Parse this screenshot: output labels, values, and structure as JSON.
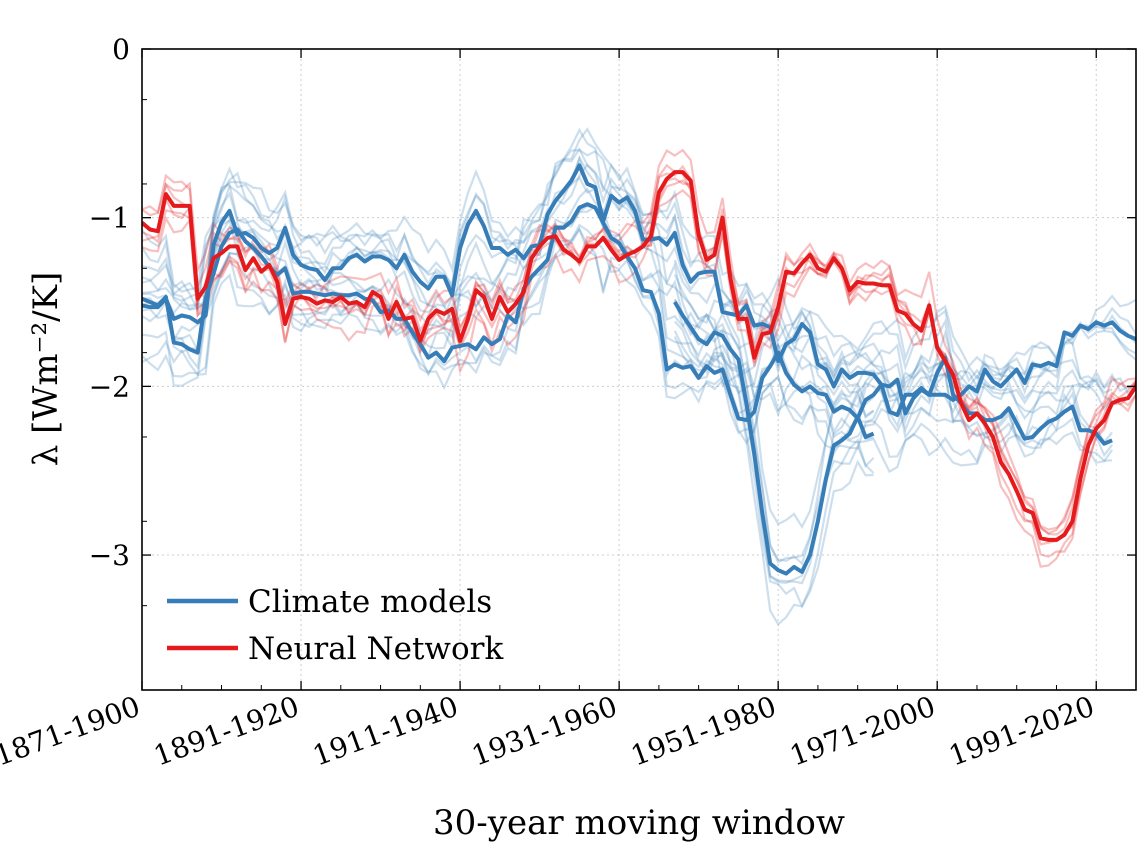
{
  "chart_data": {
    "type": "line",
    "xlabel": "30-year moving window",
    "ylabel": "λ [Wm⁻²/K]",
    "x_ticks": [
      "1871-1900",
      "1891-1920",
      "1911-1940",
      "1931-1960",
      "1951-1980",
      "1971-2000",
      "1991-2020"
    ],
    "x_tick_years": [
      1871,
      1891,
      1911,
      1931,
      1951,
      1971,
      1991
    ],
    "xlim": [
      1871,
      1996
    ],
    "y_ticks": [
      0,
      -1,
      -2,
      -3
    ],
    "ylim": [
      -3.8,
      0
    ],
    "grid": true,
    "legend_position": "bottom-left",
    "colors": {
      "climate": "#377eb8",
      "network": "#e41a1c"
    },
    "legend": [
      {
        "label": "Climate models",
        "color": "#377eb8"
      },
      {
        "label": "Neural Network",
        "color": "#e41a1c"
      }
    ],
    "series": [
      {
        "name": "Climate models",
        "color": "#377eb8",
        "x_start": 1871,
        "values": [
          -1.52,
          -1.53,
          -1.53,
          -1.48,
          -1.6,
          -1.58,
          -1.59,
          -1.62,
          -1.58,
          -1.16,
          -1.03,
          -0.96,
          -1.1,
          -1.09,
          -1.12,
          -1.18,
          -1.21,
          -1.18,
          -1.06,
          -1.22,
          -1.28,
          -1.3,
          -1.31,
          -1.37,
          -1.3,
          -1.3,
          -1.24,
          -1.22,
          -1.26,
          -1.23,
          -1.23,
          -1.25,
          -1.3,
          -1.22,
          -1.32,
          -1.38,
          -1.42,
          -1.35,
          -1.35,
          -1.46,
          -1.18,
          -1.04,
          -0.96,
          -1.05,
          -1.18,
          -1.18,
          -1.22,
          -1.19,
          -1.24,
          -1.17,
          -1.16,
          -0.98,
          -0.9,
          -0.84,
          -0.78,
          -0.69,
          -0.8,
          -0.82,
          -1.02,
          -0.87,
          -0.91,
          -0.88,
          -0.96,
          -1.13,
          -1.13,
          -1.12,
          -1.16,
          -1.09,
          -1.28,
          -1.38,
          -1.33,
          -1.32,
          -1.32,
          -1.56,
          -1.57,
          -1.58,
          -1.52,
          -1.64,
          -1.63,
          -1.65,
          -1.85,
          -1.75,
          -1.72,
          -1.63,
          -1.68,
          -1.87,
          -1.9,
          -2.0,
          -1.9,
          -1.95,
          -1.92,
          -1.92,
          -1.93,
          -1.99,
          -2.15,
          -2.17,
          -2.05,
          -2.05,
          -2.01,
          -2.05,
          -2.05,
          -2.05,
          -2.08,
          -2.05,
          -2.0,
          -2.03,
          -1.9,
          -1.97,
          -2.0,
          -1.95,
          -1.9,
          -1.98,
          -1.87,
          -1.88,
          -1.86,
          -1.88,
          -1.68,
          -1.7,
          -1.64,
          -1.66,
          -1.62,
          -1.64,
          -1.62,
          -1.67,
          -1.7,
          -1.72,
          -1.68,
          -1.62,
          -1.32,
          -1.25,
          -1.37,
          -1.36,
          -1.44
        ]
      },
      {
        "name": "Climate models",
        "color": "#377eb8",
        "x_start": 1871,
        "values": [
          -1.48,
          -1.5,
          -1.52,
          -1.47,
          -1.74,
          -1.75,
          -1.78,
          -1.8,
          -1.48,
          -1.33,
          -1.17,
          -1.09,
          -1.07,
          -1.14,
          -1.18,
          -1.23,
          -1.29,
          -1.34,
          -1.3,
          -1.45,
          -1.44,
          -1.44,
          -1.45,
          -1.46,
          -1.45,
          -1.46,
          -1.46,
          -1.45,
          -1.48,
          -1.49,
          -1.56,
          -1.55,
          -1.6,
          -1.6,
          -1.68,
          -1.75,
          -1.83,
          -1.8,
          -1.85,
          -1.77,
          -1.76,
          -1.75,
          -1.78,
          -1.71,
          -1.75,
          -1.72,
          -1.58,
          -1.62,
          -1.42,
          -1.35,
          -1.3,
          -1.25,
          -1.06,
          -1.06,
          -1.02,
          -0.94,
          -0.92,
          -0.94,
          -1.03,
          -1.12,
          -1.15,
          -1.23,
          -1.3,
          -1.43,
          -1.44,
          -1.57,
          -1.9,
          -1.87,
          -1.89,
          -1.88,
          -1.95,
          -1.88,
          -1.92,
          -1.9,
          -2.05,
          -2.19,
          -2.2,
          -2.15,
          -1.95,
          -1.88,
          -1.8,
          -1.92,
          -1.99,
          -2.03,
          -2.0,
          -2.04,
          -2.05,
          -2.15,
          -2.12,
          -2.14,
          -2.19,
          -2.08,
          -2.05,
          -1.99,
          -2.0,
          -1.96,
          -2.16,
          -2.07,
          -2.02,
          -2.05,
          -1.92,
          -1.83,
          -2.05,
          -2.1,
          -2.16,
          -2.16,
          -2.2,
          -2.2,
          -2.18,
          -2.13,
          -2.22,
          -2.31,
          -2.3,
          -2.25,
          -2.21,
          -2.19,
          -2.15,
          -2.12,
          -2.26,
          -2.26,
          -2.28,
          -2.34,
          -2.32
        ]
      },
      {
        "name": "Climate models",
        "color": "#377eb8",
        "x_start": 1938,
        "values": [
          -1.5,
          -1.58,
          -1.65,
          -1.72,
          -1.75,
          -1.68,
          -1.7,
          -1.78,
          -1.84,
          -2.1,
          -2.4,
          -2.75,
          -3.05,
          -3.09,
          -3.11,
          -3.07,
          -3.1,
          -3.0,
          -2.8,
          -2.55,
          -2.35,
          -2.32,
          -2.28,
          -2.18,
          -2.3,
          -2.28
        ]
      },
      {
        "name": "Neural Network",
        "color": "#e41a1c",
        "x_start": 1871,
        "values": [
          -1.03,
          -1.07,
          -1.08,
          -0.86,
          -0.93,
          -0.93,
          -0.93,
          -1.48,
          -1.41,
          -1.24,
          -1.21,
          -1.17,
          -1.17,
          -1.31,
          -1.24,
          -1.32,
          -1.28,
          -1.38,
          -1.63,
          -1.48,
          -1.47,
          -1.48,
          -1.51,
          -1.49,
          -1.5,
          -1.47,
          -1.51,
          -1.5,
          -1.53,
          -1.44,
          -1.47,
          -1.6,
          -1.5,
          -1.6,
          -1.59,
          -1.73,
          -1.6,
          -1.55,
          -1.57,
          -1.54,
          -1.73,
          -1.6,
          -1.43,
          -1.47,
          -1.6,
          -1.47,
          -1.56,
          -1.51,
          -1.44,
          -1.24,
          -1.17,
          -1.12,
          -1.11,
          -1.19,
          -1.22,
          -1.26,
          -1.17,
          -1.17,
          -1.12,
          -1.19,
          -1.25,
          -1.22,
          -1.2,
          -1.17,
          -1.11,
          -0.85,
          -0.77,
          -0.73,
          -0.73,
          -0.78,
          -1.1,
          -1.25,
          -1.22,
          -1.0,
          -1.36,
          -1.6,
          -1.6,
          -1.83,
          -1.69,
          -1.68,
          -1.53,
          -1.32,
          -1.33,
          -1.27,
          -1.22,
          -1.3,
          -1.32,
          -1.24,
          -1.3,
          -1.43,
          -1.38,
          -1.39,
          -1.39,
          -1.4,
          -1.4,
          -1.55,
          -1.57,
          -1.63,
          -1.67,
          -1.52,
          -1.77,
          -1.85,
          -1.93,
          -2.1,
          -2.2,
          -2.16,
          -2.22,
          -2.3,
          -2.45,
          -2.52,
          -2.62,
          -2.73,
          -2.75,
          -2.9,
          -2.91,
          -2.91,
          -2.88,
          -2.8,
          -2.55,
          -2.35,
          -2.25,
          -2.2,
          -2.1,
          -2.08,
          -2.07,
          -2.0,
          -1.8,
          -1.77,
          -1.76
        ]
      }
    ]
  }
}
